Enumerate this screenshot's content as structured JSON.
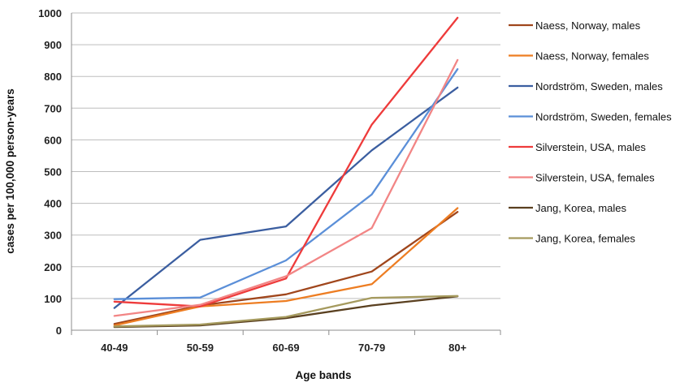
{
  "chart_data": {
    "type": "line",
    "title": "",
    "xlabel": "Age bands",
    "ylabel": "cases per 100,000 person-years",
    "categories": [
      "40-49",
      "50-59",
      "60-69",
      "70-79",
      "80+"
    ],
    "ylim": [
      0,
      1000
    ],
    "yticks": [
      0,
      100,
      200,
      300,
      400,
      500,
      600,
      700,
      800,
      900,
      1000
    ],
    "grid": true,
    "legend_position": "right",
    "series": [
      {
        "name": "Naess, Norway, males",
        "color": "#a0461c",
        "values": [
          20,
          78,
          113,
          185,
          373
        ]
      },
      {
        "name": "Naess, Norway, females",
        "color": "#ed7d22",
        "values": [
          15,
          75,
          92,
          145,
          385
        ]
      },
      {
        "name": "Nordström, Sweden, males",
        "color": "#3b5ea0",
        "values": [
          70,
          285,
          327,
          567,
          765
        ]
      },
      {
        "name": "Nordström, Sweden, females",
        "color": "#5b8fd8",
        "values": [
          98,
          103,
          220,
          428,
          823
        ]
      },
      {
        "name": "Silverstein, USA, males",
        "color": "#ee3b3b",
        "values": [
          90,
          75,
          163,
          648,
          985
        ]
      },
      {
        "name": "Silverstein, USA, females",
        "color": "#f28585",
        "values": [
          45,
          80,
          170,
          322,
          852
        ]
      },
      {
        "name": "Jang, Korea, males",
        "color": "#5a4020",
        "values": [
          10,
          15,
          38,
          78,
          107
        ]
      },
      {
        "name": "Jang, Korea, females",
        "color": "#a59a5e",
        "values": [
          12,
          18,
          42,
          102,
          108
        ]
      }
    ]
  }
}
